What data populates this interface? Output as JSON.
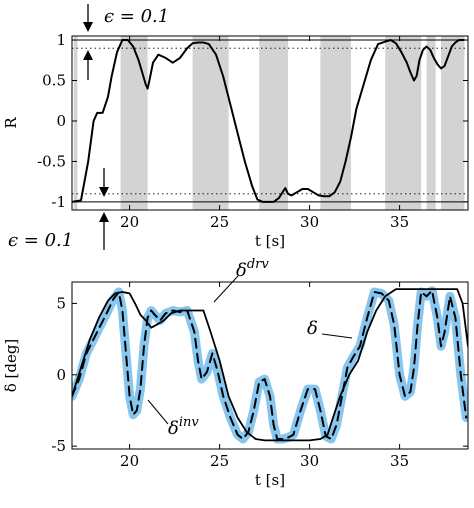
{
  "chart_data": [
    {
      "type": "line",
      "xlabel": "t [s]",
      "ylabel": "R",
      "xlim": [
        16.8,
        38.8
      ],
      "ylim": [
        -1.1,
        1.05
      ],
      "xticks": [
        20,
        25,
        30,
        35
      ],
      "xtick_labels": [
        "20",
        "25",
        "30",
        "35"
      ],
      "yticks": [
        1,
        0.5,
        0,
        -0.5,
        -1
      ],
      "ytick_labels": [
        "1",
        "0.5",
        "0",
        "-0.5",
        "-1"
      ],
      "grid": false,
      "reference_lines": [
        1,
        0.9,
        -0.9,
        -1
      ],
      "shaded_intervals": [
        [
          16.9,
          17.1
        ],
        [
          19.5,
          21.0
        ],
        [
          23.5,
          25.5
        ],
        [
          27.2,
          28.8
        ],
        [
          30.6,
          32.3
        ],
        [
          34.2,
          36.2
        ],
        [
          36.5,
          37.0
        ],
        [
          37.3,
          38.6
        ]
      ],
      "annotations": {
        "epsilon_top": "ϵ = 0.1",
        "epsilon_bottom": "ϵ = 0.1"
      },
      "series": [
        {
          "color": "#000000",
          "x": [
            16.8,
            17.3,
            17.7,
            18.0,
            18.2,
            18.5,
            18.8,
            19.0,
            19.3,
            19.6,
            19.9,
            20.2,
            20.5,
            20.7,
            20.9,
            21.0,
            21.1,
            21.3,
            21.6,
            22.0,
            22.4,
            22.8,
            23.2,
            23.5,
            23.8,
            24.1,
            24.4,
            24.8,
            25.2,
            25.6,
            26.0,
            26.4,
            26.8,
            27.1,
            27.4,
            27.7,
            28.0,
            28.3,
            28.5,
            28.65,
            28.8,
            29.0,
            29.3,
            29.6,
            29.9,
            30.2,
            30.5,
            30.8,
            31.1,
            31.4,
            31.7,
            32.0,
            32.3,
            32.6,
            33.0,
            33.4,
            33.8,
            34.2,
            34.5,
            34.8,
            35.1,
            35.4,
            35.6,
            35.8,
            35.95,
            36.1,
            36.3,
            36.5,
            36.7,
            36.9,
            37.1,
            37.3,
            37.5,
            37.7,
            37.9,
            38.1,
            38.3,
            38.6
          ],
          "y": [
            -1.0,
            -0.98,
            -0.5,
            0.0,
            0.1,
            0.1,
            0.3,
            0.55,
            0.85,
            1.0,
            1.0,
            0.92,
            0.75,
            0.6,
            0.45,
            0.4,
            0.5,
            0.72,
            0.82,
            0.78,
            0.72,
            0.78,
            0.9,
            0.96,
            0.97,
            0.97,
            0.95,
            0.82,
            0.55,
            0.2,
            -0.15,
            -0.5,
            -0.8,
            -0.97,
            -1.0,
            -1.0,
            -1.0,
            -0.95,
            -0.88,
            -0.83,
            -0.9,
            -0.92,
            -0.88,
            -0.84,
            -0.84,
            -0.88,
            -0.92,
            -0.93,
            -0.93,
            -0.88,
            -0.75,
            -0.5,
            -0.2,
            0.15,
            0.45,
            0.75,
            0.95,
            0.98,
            1.0,
            0.96,
            0.85,
            0.72,
            0.6,
            0.5,
            0.56,
            0.75,
            0.88,
            0.92,
            0.88,
            0.78,
            0.7,
            0.65,
            0.68,
            0.8,
            0.92,
            0.97,
            1.0,
            1.0
          ]
        }
      ]
    },
    {
      "type": "line",
      "xlabel": "t [s]",
      "ylabel": "δ [deg]",
      "xlim": [
        16.8,
        38.8
      ],
      "ylim": [
        -5.2,
        6.5
      ],
      "xticks": [
        20,
        25,
        30,
        35
      ],
      "xtick_labels": [
        "20",
        "25",
        "30",
        "35"
      ],
      "yticks": [
        5,
        0,
        -5
      ],
      "ytick_labels": [
        "5",
        "0",
        "-5"
      ],
      "grid": false,
      "annotations": {
        "delta_drv": {
          "base": "δ",
          "sup": "drv"
        },
        "delta_inv": {
          "base": "δ",
          "sup": "inv"
        },
        "delta": "δ"
      },
      "series": [
        {
          "name": "δ",
          "color": "#87c6ee",
          "style": "thick",
          "x": [
            16.8,
            17.2,
            17.6,
            18.0,
            18.4,
            18.8,
            19.1,
            19.4,
            19.6,
            19.8,
            20.0,
            20.2,
            20.4,
            20.6,
            20.8,
            21.0,
            21.2,
            21.4,
            21.7,
            22.0,
            22.4,
            22.8,
            23.2,
            23.6,
            23.8,
            24.0,
            24.3,
            24.6,
            24.9,
            25.2,
            25.6,
            26.0,
            26.3,
            26.6,
            26.9,
            27.2,
            27.5,
            27.8,
            28.0,
            28.2,
            28.5,
            28.8,
            29.1,
            29.5,
            29.9,
            30.3,
            30.6,
            30.9,
            31.2,
            31.5,
            31.8,
            32.1,
            32.4,
            32.8,
            33.2,
            33.6,
            34.0,
            34.4,
            34.7,
            35.0,
            35.3,
            35.6,
            35.8,
            36.0,
            36.2,
            36.5,
            36.8,
            37.1,
            37.3,
            37.5,
            37.8,
            38.1,
            38.4,
            38.7
          ],
          "y": [
            -1.5,
            -0.3,
            1.5,
            2.5,
            3.5,
            4.5,
            5.3,
            5.8,
            4.5,
            1.5,
            -1.5,
            -2.8,
            -2.5,
            -1.0,
            2.0,
            4.0,
            4.5,
            4.2,
            3.8,
            4.3,
            4.5,
            4.4,
            4.5,
            3.0,
            1.0,
            -0.3,
            0.2,
            1.5,
            0.2,
            -1.5,
            -3.0,
            -4.2,
            -4.5,
            -4.0,
            -2.5,
            -0.5,
            -0.3,
            -1.5,
            -3.5,
            -4.5,
            -4.5,
            -4.4,
            -4.2,
            -2.5,
            -1.0,
            -1.0,
            -2.5,
            -4.3,
            -4.5,
            -3.5,
            -1.5,
            0.5,
            1.2,
            2.0,
            4.0,
            5.8,
            5.7,
            5.2,
            3.5,
            0.0,
            -1.5,
            -1.2,
            0.5,
            3.5,
            5.8,
            5.5,
            5.9,
            4.0,
            2.0,
            3.0,
            5.5,
            4.0,
            0.0,
            -3.0
          ]
        },
        {
          "name": "δ inv",
          "color": "#000000",
          "style": "dashed",
          "x": [
            16.8,
            17.2,
            17.6,
            18.0,
            18.4,
            18.8,
            19.1,
            19.4,
            19.6,
            19.8,
            20.0,
            20.2,
            20.4,
            20.6,
            20.8,
            21.0,
            21.2,
            21.4,
            21.7,
            22.0,
            22.4,
            22.8,
            23.2,
            23.6,
            23.8,
            24.0,
            24.3,
            24.6,
            24.9,
            25.2,
            25.6,
            26.0,
            26.3,
            26.6,
            26.9,
            27.2,
            27.5,
            27.8,
            28.0,
            28.2,
            28.5,
            28.8,
            29.1,
            29.5,
            29.9,
            30.3,
            30.6,
            30.9,
            31.2,
            31.5,
            31.8,
            32.1,
            32.4,
            32.8,
            33.2,
            33.6,
            34.0,
            34.4,
            34.7,
            35.0,
            35.3,
            35.6,
            35.8,
            36.0,
            36.2,
            36.5,
            36.8,
            37.1,
            37.3,
            37.5,
            37.8,
            38.1,
            38.4,
            38.7
          ],
          "y": [
            -1.5,
            -0.3,
            1.5,
            2.5,
            3.5,
            4.5,
            5.3,
            5.8,
            4.5,
            1.5,
            -1.5,
            -2.8,
            -2.5,
            -1.0,
            2.0,
            4.0,
            4.5,
            4.2,
            3.8,
            4.3,
            4.5,
            4.4,
            4.5,
            3.0,
            1.0,
            -0.3,
            0.2,
            1.5,
            0.2,
            -1.5,
            -3.0,
            -4.2,
            -4.5,
            -4.0,
            -2.5,
            -0.5,
            -0.3,
            -1.5,
            -3.5,
            -4.5,
            -4.5,
            -4.4,
            -4.2,
            -2.5,
            -1.0,
            -1.0,
            -2.5,
            -4.3,
            -4.5,
            -3.5,
            -1.5,
            0.5,
            1.2,
            2.0,
            4.0,
            5.8,
            5.7,
            5.2,
            3.5,
            0.0,
            -1.5,
            -1.2,
            0.5,
            3.5,
            5.8,
            5.5,
            5.9,
            4.0,
            2.0,
            3.0,
            5.5,
            4.0,
            0.0,
            -3.0
          ]
        },
        {
          "name": "δ drv",
          "color": "#000000",
          "style": "solid",
          "x": [
            16.8,
            17.3,
            17.8,
            18.3,
            18.8,
            19.2,
            19.6,
            20.0,
            20.3,
            20.6,
            20.9,
            21.2,
            21.5,
            21.9,
            22.3,
            22.8,
            23.3,
            23.8,
            24.1,
            24.5,
            25.0,
            25.5,
            26.0,
            26.5,
            27.0,
            27.5,
            28.0,
            28.5,
            29.0,
            29.5,
            30.0,
            30.6,
            31.0,
            31.3,
            31.7,
            32.2,
            32.7,
            33.2,
            33.7,
            34.2,
            34.8,
            35.4,
            36.0,
            36.6,
            37.2,
            37.8,
            38.2,
            38.5,
            38.8
          ],
          "y": [
            -1.5,
            0.5,
            2.5,
            4.0,
            5.2,
            5.7,
            5.8,
            5.7,
            5.0,
            4.2,
            3.8,
            3.3,
            3.5,
            3.8,
            4.3,
            4.5,
            4.5,
            4.5,
            4.5,
            3.0,
            1.0,
            -1.5,
            -3.0,
            -4.0,
            -4.5,
            -4.6,
            -4.6,
            -4.6,
            -4.6,
            -4.6,
            -4.6,
            -4.5,
            -4.2,
            -3.0,
            -1.5,
            0.0,
            1.0,
            3.0,
            4.5,
            5.5,
            6.0,
            6.0,
            6.0,
            6.0,
            6.0,
            6.0,
            6.0,
            5.0,
            2.0
          ]
        }
      ]
    }
  ]
}
